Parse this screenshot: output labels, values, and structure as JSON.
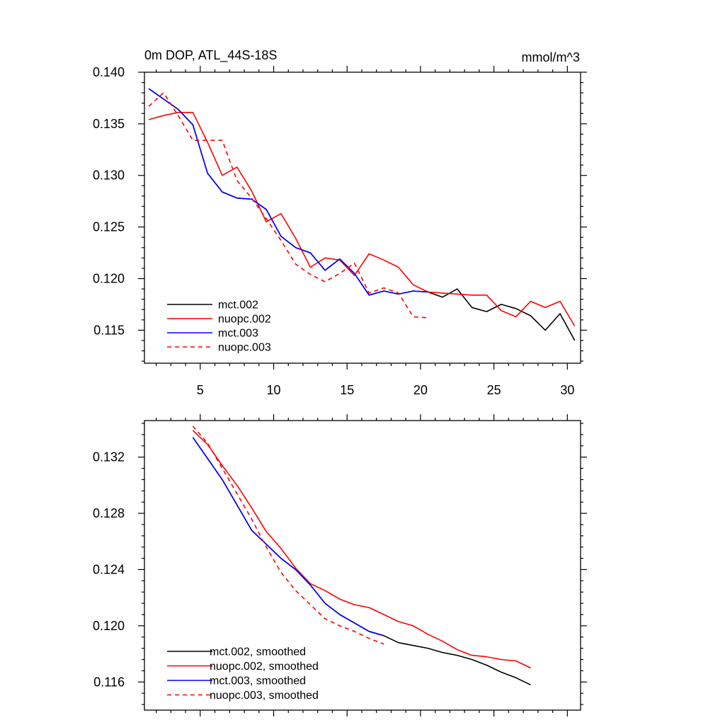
{
  "chart_data": [
    {
      "type": "line",
      "title": "0m DOP, ATL_44S-18S",
      "units": "mmol/m^3",
      "xlim": [
        1.2,
        30.9
      ],
      "ylim": [
        0.1118,
        0.14
      ],
      "xticks": [
        5,
        10,
        15,
        20,
        25,
        30
      ],
      "yticks": [
        0.14,
        0.135,
        0.13,
        0.125,
        0.12,
        0.115
      ],
      "ytick_labels": [
        "0.140",
        "0.135",
        "0.130",
        "0.125",
        "0.120",
        "0.115"
      ],
      "xtick_labels": [
        "5",
        "10",
        "15",
        "20",
        "25",
        "30"
      ],
      "series": [
        {
          "name": "mct.002",
          "color": "#000000",
          "dashed": false,
          "x": [
            1.5,
            2.5,
            3.5,
            4.5,
            5.5,
            6.5,
            7.5,
            8.5,
            9.5,
            10.5,
            11.5,
            12.5,
            13.5,
            14.5,
            15.5,
            16.5,
            17.5,
            18.5,
            19.5,
            20.5,
            21.5,
            22.5,
            23.5,
            24.5,
            25.5,
            26.5,
            27.5,
            28.5,
            29.5,
            30.5
          ],
          "y": [
            0.1384,
            0.1374,
            0.1364,
            0.1349,
            0.1302,
            0.1284,
            0.1278,
            0.1277,
            0.1267,
            0.1241,
            0.123,
            0.1225,
            0.1208,
            0.1219,
            0.1205,
            0.1184,
            0.1188,
            0.1185,
            0.1188,
            0.1187,
            0.1182,
            0.119,
            0.1172,
            0.1168,
            0.1175,
            0.1171,
            0.1164,
            0.115,
            0.1166,
            0.114
          ]
        },
        {
          "name": "nuopc.002",
          "color": "#ff0000",
          "dashed": false,
          "x": [
            1.5,
            2.5,
            3.5,
            4.5,
            5.5,
            6.5,
            7.5,
            8.5,
            9.5,
            10.5,
            11.5,
            12.5,
            13.5,
            14.5,
            15.5,
            16.5,
            17.5,
            18.5,
            19.5,
            20.5,
            21.5,
            22.5,
            23.5,
            24.5,
            25.5,
            26.5,
            27.5,
            28.5,
            29.5,
            30.5
          ],
          "y": [
            0.1354,
            0.1358,
            0.1361,
            0.1361,
            0.1332,
            0.13,
            0.1308,
            0.1285,
            0.1255,
            0.1263,
            0.1239,
            0.1211,
            0.122,
            0.1218,
            0.1203,
            0.1224,
            0.1218,
            0.1211,
            0.1194,
            0.1187,
            0.1186,
            0.1185,
            0.1184,
            0.1184,
            0.1169,
            0.1163,
            0.1178,
            0.1172,
            0.1178,
            0.1154
          ]
        },
        {
          "name": "mct.003",
          "color": "#0000ff",
          "dashed": false,
          "x": [
            1.5,
            2.5,
            3.5,
            4.5,
            5.5,
            6.5,
            7.5,
            8.5,
            9.5,
            10.5,
            11.5,
            12.5,
            13.5,
            14.5,
            15.5,
            16.5,
            17.5,
            18.5,
            19.5,
            20.5
          ],
          "y": [
            0.1384,
            0.1374,
            0.1364,
            0.1349,
            0.1302,
            0.1284,
            0.1278,
            0.1277,
            0.1267,
            0.1241,
            0.123,
            0.1225,
            0.1208,
            0.1219,
            0.1205,
            0.1184,
            0.1188,
            0.1185,
            0.1188,
            0.1187
          ]
        },
        {
          "name": "nuopc.003",
          "color": "#ff0000",
          "dashed": true,
          "x": [
            1.5,
            2.5,
            3.5,
            4.5,
            5.5,
            6.5,
            7.5,
            8.5,
            9.5,
            10.5,
            11.5,
            12.5,
            13.5,
            14.5,
            15.5,
            16.5,
            17.5,
            18.5,
            19.5,
            20.5
          ],
          "y": [
            0.1367,
            0.138,
            0.1358,
            0.1334,
            0.1334,
            0.1334,
            0.1295,
            0.1278,
            0.1258,
            0.1237,
            0.1214,
            0.1204,
            0.1197,
            0.1205,
            0.1215,
            0.1186,
            0.1191,
            0.1186,
            0.1163,
            0.1162
          ]
        }
      ]
    },
    {
      "type": "line",
      "title": "",
      "xlim": [
        1.2,
        30.9
      ],
      "ylim": [
        0.114,
        0.1346
      ],
      "xticks": [
        5,
        10,
        15,
        20,
        25,
        30
      ],
      "yticks": [
        0.132,
        0.128,
        0.124,
        0.12,
        0.116
      ],
      "ytick_labels": [
        "0.132",
        "0.128",
        "0.124",
        "0.120",
        "0.116"
      ],
      "xtick_labels": [],
      "series": [
        {
          "name": "mct.002, smoothed",
          "color": "#000000",
          "dashed": false,
          "x": [
            4.5,
            5.5,
            6.5,
            7.5,
            8.5,
            9.5,
            10.5,
            11.5,
            12.5,
            13.5,
            14.5,
            15.5,
            16.5,
            17.5,
            18.5,
            19.5,
            20.5,
            21.5,
            22.5,
            23.5,
            24.5,
            25.5,
            26.5,
            27.5
          ],
          "y": [
            0.1334,
            0.1319,
            0.1304,
            0.1286,
            0.1268,
            0.1258,
            0.1248,
            0.124,
            0.1229,
            0.1216,
            0.1208,
            0.1202,
            0.1196,
            0.1193,
            0.1188,
            0.1186,
            0.1184,
            0.1181,
            0.1179,
            0.1176,
            0.1172,
            0.1167,
            0.1163,
            0.1158
          ]
        },
        {
          "name": "nuopc.002, smoothed",
          "color": "#ff0000",
          "dashed": false,
          "x": [
            4.5,
            5.5,
            6.5,
            7.5,
            8.5,
            9.5,
            10.5,
            11.5,
            12.5,
            13.5,
            14.5,
            15.5,
            16.5,
            17.5,
            18.5,
            19.5,
            20.5,
            21.5,
            22.5,
            23.5,
            24.5,
            25.5,
            26.5,
            27.5
          ],
          "y": [
            0.1339,
            0.1329,
            0.1314,
            0.13,
            0.1284,
            0.1267,
            0.1255,
            0.1241,
            0.123,
            0.1225,
            0.1219,
            0.1215,
            0.1213,
            0.1208,
            0.1203,
            0.12,
            0.1194,
            0.1189,
            0.1183,
            0.1179,
            0.1178,
            0.1176,
            0.1175,
            0.117
          ]
        },
        {
          "name": "mct.003, smoothed",
          "color": "#0000ff",
          "dashed": false,
          "x": [
            4.5,
            5.5,
            6.5,
            7.5,
            8.5,
            9.5,
            10.5,
            11.5,
            12.5,
            13.5,
            14.5,
            15.5,
            16.5,
            17.5
          ],
          "y": [
            0.1334,
            0.1319,
            0.1304,
            0.1286,
            0.1268,
            0.1258,
            0.1248,
            0.124,
            0.1229,
            0.1216,
            0.1208,
            0.1202,
            0.1196,
            0.1193
          ]
        },
        {
          "name": "nuopc.003, smoothed",
          "color": "#ff0000",
          "dashed": true,
          "x": [
            4.5,
            5.5,
            6.5,
            7.5,
            8.5,
            9.5,
            10.5,
            11.5,
            12.5,
            13.5,
            14.5,
            15.5,
            16.5,
            17.5
          ],
          "y": [
            0.1342,
            0.133,
            0.1312,
            0.1294,
            0.1276,
            0.1256,
            0.1238,
            0.1225,
            0.1215,
            0.1205,
            0.12,
            0.1196,
            0.1191,
            0.1187
          ]
        }
      ]
    }
  ]
}
